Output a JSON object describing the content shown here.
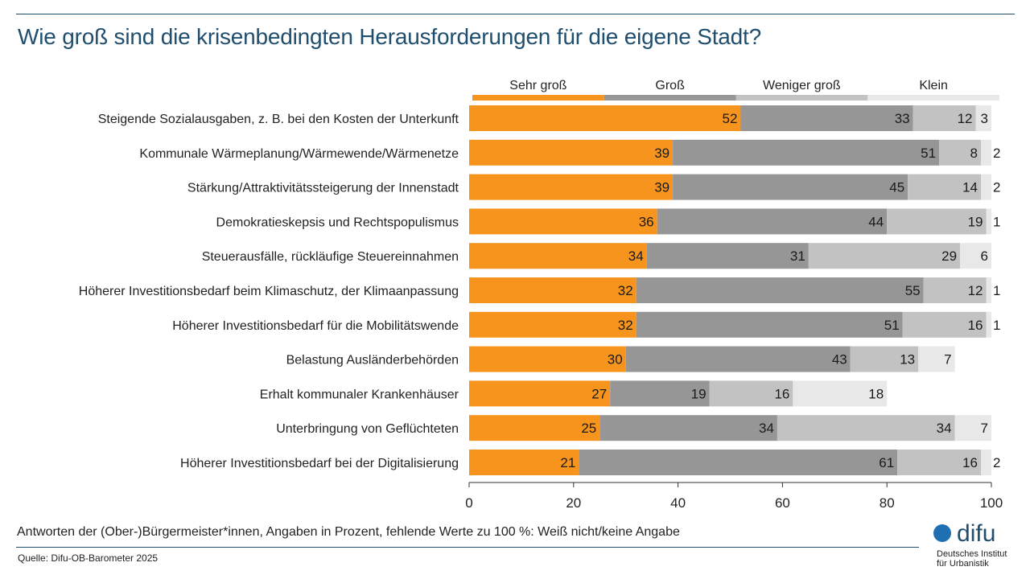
{
  "title": "Wie groß sind die krisenbedingten Herausforderungen für die eigene Stadt?",
  "footnote": "Antworten der (Ober-)Bürgermeister*innen, Angaben in Prozent, fehlende Werte zu 100 %: Weiß nicht/keine Angabe",
  "source": "Quelle: Difu-OB-Barometer 2025",
  "logo": {
    "wordmark": "difu",
    "line1": "Deutsches Institut",
    "line2": "für Urbanistik"
  },
  "chart_data": {
    "type": "bar",
    "orientation": "horizontal",
    "stacked": true,
    "title": "Wie groß sind die krisenbedingten Herausforderungen für die eigene Stadt?",
    "xlim": [
      0,
      100
    ],
    "xticks": [
      0,
      20,
      40,
      60,
      80,
      100
    ],
    "legend_position": "top",
    "grid": false,
    "categories": [
      "Steigende Sozialausgaben, z. B. bei den Kosten der Unterkunft",
      "Kommunale Wärmeplanung/Wärmewende/Wärmenetze",
      "Stärkung/Attraktivitätssteigerung der Innenstadt",
      "Demokratieskepsis und Rechtspopulismus",
      "Steuerausfälle, rückläufige Steuereinnahmen",
      "Höherer Investitionsbedarf beim Klimaschutz, der Klimaanpassung",
      "Höherer Investitionsbedarf für die Mobilitätswende",
      "Belastung Ausländerbehörden",
      "Erhalt kommunaler Krankenhäuser",
      "Unterbringung von Geflüchteten",
      "Höherer Investitionsbedarf bei der Digitalisierung"
    ],
    "series": [
      {
        "name": "Sehr groß",
        "color": "#f7941d",
        "values": [
          52,
          39,
          39,
          36,
          34,
          32,
          32,
          30,
          27,
          25,
          21
        ]
      },
      {
        "name": "Groß",
        "color": "#969696",
        "values": [
          33,
          51,
          45,
          44,
          31,
          55,
          51,
          43,
          19,
          34,
          61
        ]
      },
      {
        "name": "Weniger groß",
        "color": "#c2c2c2",
        "values": [
          12,
          8,
          14,
          19,
          29,
          12,
          16,
          13,
          16,
          34,
          16
        ]
      },
      {
        "name": "Klein",
        "color": "#e8e8e8",
        "values": [
          3,
          2,
          2,
          1,
          6,
          1,
          1,
          7,
          18,
          7,
          2
        ]
      }
    ]
  }
}
